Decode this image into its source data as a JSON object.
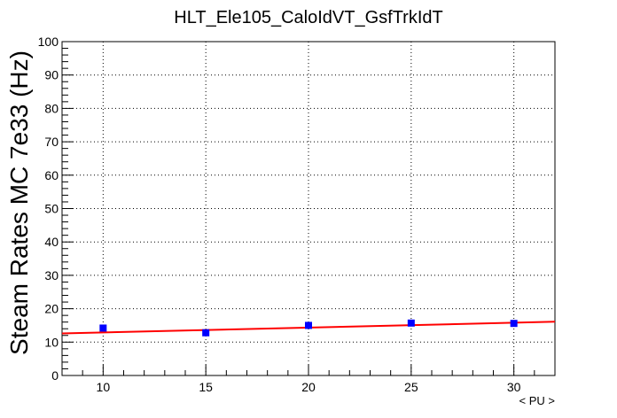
{
  "chart_data": {
    "type": "scatter",
    "title": "HLT_Ele105_CaloIdVT_GsfTrkIdT",
    "xlabel": "< PU >",
    "ylabel": "Steam Rates MC 7e33 (Hz)",
    "xlim": [
      8,
      32
    ],
    "ylim": [
      0,
      100
    ],
    "grid": true,
    "x_ticks": [
      10,
      15,
      20,
      25,
      30
    ],
    "y_ticks": [
      0,
      10,
      20,
      30,
      40,
      50,
      60,
      70,
      80,
      90,
      100
    ],
    "series": [
      {
        "marker": "square",
        "color": "#0000ff",
        "x": [
          10,
          15,
          20,
          25,
          30
        ],
        "y": [
          14.2,
          12.8,
          15.0,
          15.7,
          15.6
        ]
      }
    ],
    "fit_line": {
      "color": "#ff0000",
      "x": [
        8,
        32
      ],
      "y": [
        12.6,
        16.1
      ]
    }
  }
}
